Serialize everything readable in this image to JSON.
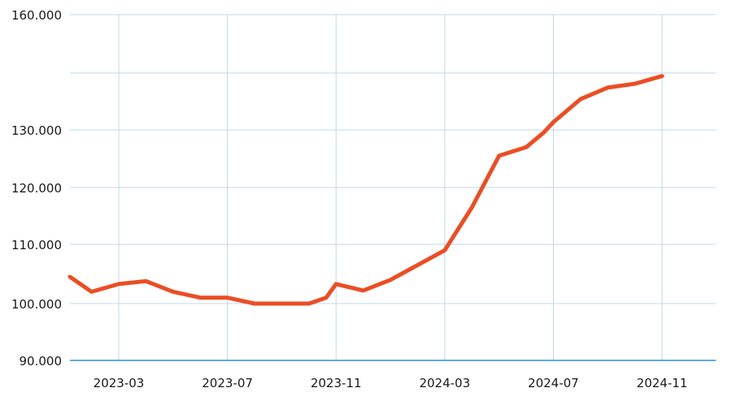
{
  "chart_data": {
    "type": "line",
    "title": "",
    "xlabel": "",
    "ylabel": "",
    "x_tick_labels": [
      "2023-03",
      "2023-07",
      "2023-11",
      "2024-03",
      "2024-07",
      "2024-11"
    ],
    "y_tick_labels": [
      "90.000",
      "100.000",
      "110.000",
      "120.000",
      "130.000",
      "160.000"
    ],
    "grid": true,
    "series": [
      {
        "color": "#ea4e24",
        "points": [
          {
            "x": "2023-01",
            "y": 104500
          },
          {
            "x": "2023-02",
            "y": 102000
          },
          {
            "x": "2023-03",
            "y": 103300
          },
          {
            "x": "2023-04",
            "y": 103800
          },
          {
            "x": "2023-05",
            "y": 102000
          },
          {
            "x": "2023-06",
            "y": 101000
          },
          {
            "x": "2023-07",
            "y": 101000
          },
          {
            "x": "2023-08",
            "y": 100000
          },
          {
            "x": "2023-09",
            "y": 100000
          },
          {
            "x": "2023-10",
            "y": 100000
          },
          {
            "x": "2023-10-20",
            "y": 101000
          },
          {
            "x": "2023-11",
            "y": 103300
          },
          {
            "x": "2023-12",
            "y": 102200
          },
          {
            "x": "2024-01",
            "y": 104000
          },
          {
            "x": "2024-02",
            "y": 106500
          },
          {
            "x": "2024-03",
            "y": 109000
          },
          {
            "x": "2024-04",
            "y": 116500
          },
          {
            "x": "2024-05",
            "y": 125500
          },
          {
            "x": "2024-06",
            "y": 127000
          },
          {
            "x": "2024-06-20",
            "y": 129500
          },
          {
            "x": "2024-07",
            "y": 132000
          },
          {
            "x": "2024-08",
            "y": 138000
          },
          {
            "x": "2024-09",
            "y": 141000
          },
          {
            "x": "2024-10",
            "y": 142000
          },
          {
            "x": "2024-11",
            "y": 144000
          }
        ]
      }
    ]
  }
}
